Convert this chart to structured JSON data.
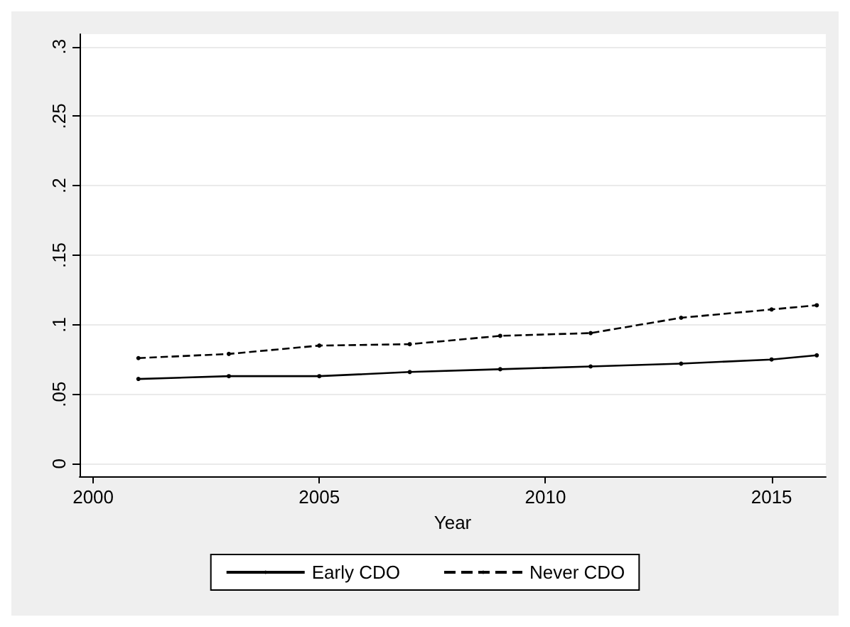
{
  "chart_data": {
    "type": "line",
    "xlabel": "Year",
    "x": [
      2001,
      2003,
      2005,
      2007,
      2009,
      2011,
      2013,
      2015,
      2016
    ],
    "series": [
      {
        "name": "Early CDO",
        "color": "#000000",
        "line_style": "solid",
        "values": [
          0.061,
          0.063,
          0.063,
          0.066,
          0.068,
          0.07,
          0.072,
          0.075,
          0.078
        ]
      },
      {
        "name": "Never CDO",
        "color": "#000000",
        "line_style": "dashed",
        "values": [
          0.076,
          0.079,
          0.085,
          0.086,
          0.092,
          0.094,
          0.105,
          0.111,
          0.114
        ]
      }
    ],
    "xlim": [
      1999.7,
      2016.2
    ],
    "xticks": [
      2000,
      2005,
      2010,
      2015
    ],
    "ylim": [
      -0.009,
      0.309
    ],
    "yticks": [
      0,
      {
        "value": 0.05,
        "label": ".05"
      },
      {
        "value": 0.1,
        "label": ".1"
      },
      {
        "value": 0.15,
        "label": ".15"
      },
      {
        "value": 0.2,
        "label": ".2"
      },
      {
        "value": 0.25,
        "label": ".25"
      },
      {
        "value": 0.3,
        "label": ".3"
      }
    ],
    "grid": "y",
    "legend": "bottom",
    "marker": "circle"
  }
}
